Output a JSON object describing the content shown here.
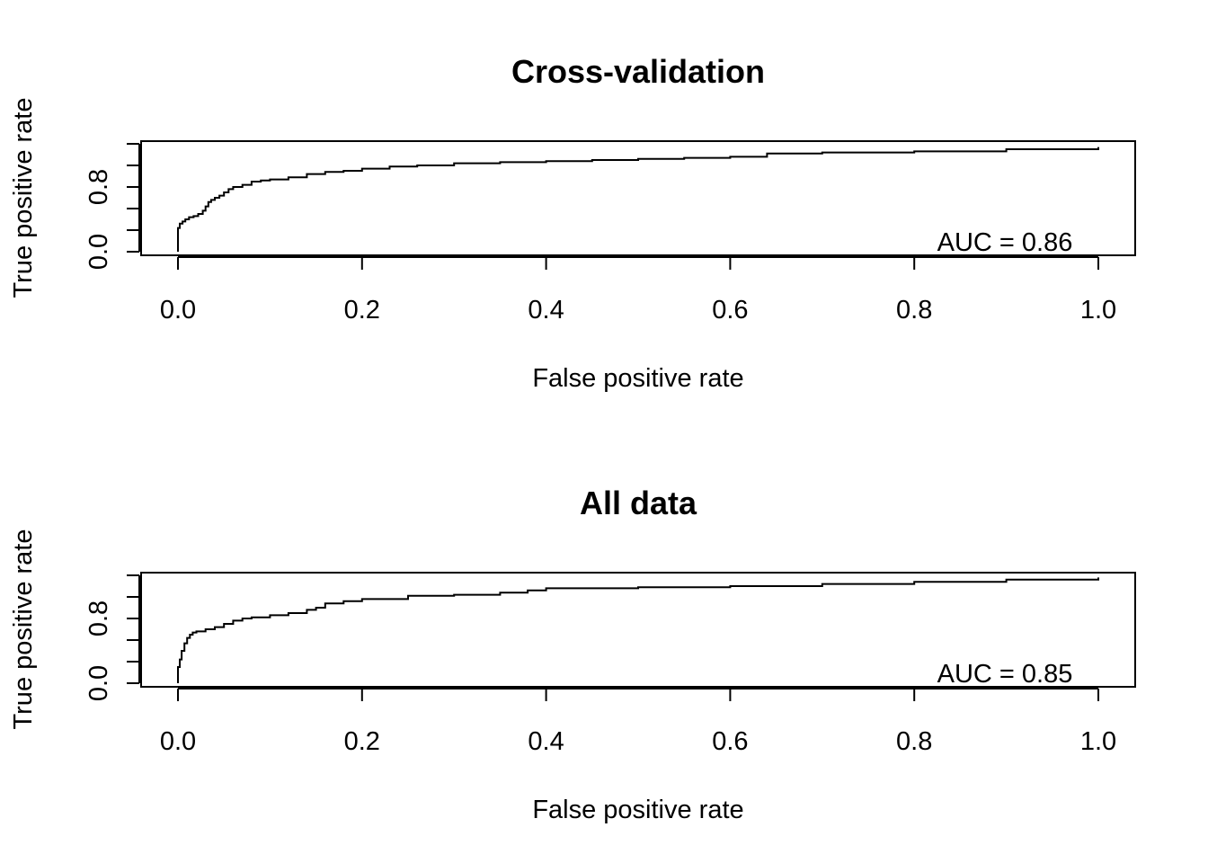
{
  "chart_data": [
    {
      "type": "line",
      "title": "Cross-validation",
      "xlabel": "False positive rate",
      "ylabel": "True positive rate",
      "xlim": [
        0,
        1
      ],
      "ylim": [
        0,
        1
      ],
      "x_ticks": [
        "0.0",
        "0.2",
        "0.4",
        "0.6",
        "0.8",
        "1.0"
      ],
      "y_tick_labels": [
        "0.0",
        "0.8"
      ],
      "y_ticks_count": 6,
      "annotation": "AUC = 0.86",
      "series": [
        {
          "x": [
            0.0,
            0.0,
            0.002,
            0.005,
            0.008,
            0.012,
            0.017,
            0.022,
            0.027,
            0.03,
            0.033,
            0.036,
            0.04,
            0.045,
            0.05,
            0.055,
            0.06,
            0.07,
            0.08,
            0.09,
            0.1,
            0.12,
            0.14,
            0.16,
            0.18,
            0.2,
            0.23,
            0.26,
            0.3,
            0.35,
            0.4,
            0.45,
            0.5,
            0.55,
            0.6,
            0.63,
            0.64,
            0.7,
            0.8,
            0.9,
            1.0
          ],
          "y": [
            0.0,
            0.22,
            0.26,
            0.28,
            0.3,
            0.32,
            0.33,
            0.35,
            0.38,
            0.42,
            0.46,
            0.48,
            0.5,
            0.52,
            0.55,
            0.58,
            0.6,
            0.62,
            0.65,
            0.66,
            0.67,
            0.69,
            0.72,
            0.74,
            0.75,
            0.77,
            0.79,
            0.8,
            0.82,
            0.83,
            0.84,
            0.85,
            0.86,
            0.87,
            0.88,
            0.88,
            0.91,
            0.92,
            0.93,
            0.95,
            0.97
          ]
        }
      ]
    },
    {
      "type": "line",
      "title": "All data",
      "xlabel": "False positive rate",
      "ylabel": "True positive rate",
      "xlim": [
        0,
        1
      ],
      "ylim": [
        0,
        1
      ],
      "x_ticks": [
        "0.0",
        "0.2",
        "0.4",
        "0.6",
        "0.8",
        "1.0"
      ],
      "y_tick_labels": [
        "0.0",
        "0.8"
      ],
      "y_ticks_count": 6,
      "annotation": "AUC = 0.85",
      "series": [
        {
          "x": [
            0.0,
            0.0,
            0.002,
            0.004,
            0.007,
            0.01,
            0.013,
            0.016,
            0.02,
            0.03,
            0.04,
            0.05,
            0.06,
            0.07,
            0.08,
            0.1,
            0.12,
            0.14,
            0.15,
            0.16,
            0.18,
            0.2,
            0.25,
            0.3,
            0.35,
            0.38,
            0.4,
            0.5,
            0.6,
            0.7,
            0.8,
            0.9,
            1.0
          ],
          "y": [
            0.0,
            0.15,
            0.22,
            0.3,
            0.37,
            0.42,
            0.45,
            0.47,
            0.48,
            0.5,
            0.52,
            0.55,
            0.58,
            0.6,
            0.61,
            0.63,
            0.65,
            0.68,
            0.7,
            0.74,
            0.76,
            0.78,
            0.81,
            0.82,
            0.84,
            0.86,
            0.88,
            0.89,
            0.9,
            0.92,
            0.94,
            0.96,
            0.98
          ]
        }
      ]
    }
  ]
}
